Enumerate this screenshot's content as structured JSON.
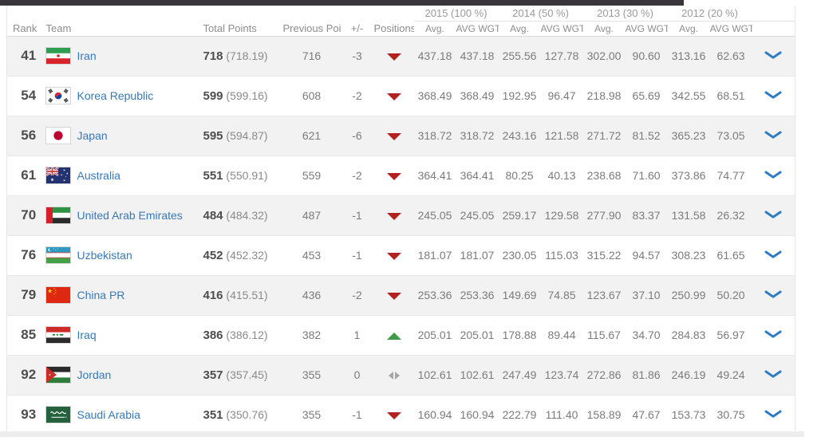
{
  "table": {
    "year_groups": [
      "2015 (100 %)",
      "2014 (50 %)",
      "2013 (30 %)",
      "2012 (20 %)"
    ],
    "subheaders": {
      "avg": "Avg.",
      "avg_wgt": "AVG WGT"
    },
    "columns": {
      "rank": "Rank",
      "team": "Team",
      "total_points": "Total Points",
      "previous_points": "Previous Points",
      "plus_minus": "+/-",
      "positions": "Positions"
    },
    "rows": [
      {
        "rank": "41",
        "team": "Iran",
        "flag": "iran",
        "total": "718",
        "total_detail": "(718.19)",
        "previous": "716",
        "change": "-3",
        "direction": "down",
        "values": [
          "437.18",
          "437.18",
          "255.56",
          "127.78",
          "302.00",
          "90.60",
          "313.16",
          "62.63"
        ]
      },
      {
        "rank": "54",
        "team": "Korea Republic",
        "flag": "korea-republic",
        "total": "599",
        "total_detail": "(599.16)",
        "previous": "608",
        "change": "-2",
        "direction": "down",
        "values": [
          "368.49",
          "368.49",
          "192.95",
          "96.47",
          "218.98",
          "65.69",
          "342.55",
          "68.51"
        ]
      },
      {
        "rank": "56",
        "team": "Japan",
        "flag": "japan",
        "total": "595",
        "total_detail": "(594.87)",
        "previous": "621",
        "change": "-6",
        "direction": "down",
        "values": [
          "318.72",
          "318.72",
          "243.16",
          "121.58",
          "271.72",
          "81.52",
          "365.23",
          "73.05"
        ]
      },
      {
        "rank": "61",
        "team": "Australia",
        "flag": "australia",
        "total": "551",
        "total_detail": "(550.91)",
        "previous": "559",
        "change": "-2",
        "direction": "down",
        "values": [
          "364.41",
          "364.41",
          "80.25",
          "40.13",
          "238.68",
          "71.60",
          "373.86",
          "74.77"
        ]
      },
      {
        "rank": "70",
        "team": "United Arab Emirates",
        "flag": "united-arab-emirates",
        "total": "484",
        "total_detail": "(484.32)",
        "previous": "487",
        "change": "-1",
        "direction": "down",
        "values": [
          "245.05",
          "245.05",
          "259.17",
          "129.58",
          "277.90",
          "83.37",
          "131.58",
          "26.32"
        ]
      },
      {
        "rank": "76",
        "team": "Uzbekistan",
        "flag": "uzbekistan",
        "total": "452",
        "total_detail": "(452.32)",
        "previous": "453",
        "change": "-1",
        "direction": "down",
        "values": [
          "181.07",
          "181.07",
          "230.05",
          "115.03",
          "315.22",
          "94.57",
          "308.23",
          "61.65"
        ]
      },
      {
        "rank": "79",
        "team": "China PR",
        "flag": "china-pr",
        "total": "416",
        "total_detail": "(415.51)",
        "previous": "436",
        "change": "-2",
        "direction": "down",
        "values": [
          "253.36",
          "253.36",
          "149.69",
          "74.85",
          "123.67",
          "37.10",
          "250.99",
          "50.20"
        ]
      },
      {
        "rank": "85",
        "team": "Iraq",
        "flag": "iraq",
        "total": "386",
        "total_detail": "(386.12)",
        "previous": "382",
        "change": "1",
        "direction": "up",
        "values": [
          "205.01",
          "205.01",
          "178.88",
          "89.44",
          "115.67",
          "34.70",
          "284.83",
          "56.97"
        ]
      },
      {
        "rank": "92",
        "team": "Jordan",
        "flag": "jordan",
        "total": "357",
        "total_detail": "(357.45)",
        "previous": "355",
        "change": "0",
        "direction": "none",
        "values": [
          "102.61",
          "102.61",
          "247.49",
          "123.74",
          "272.86",
          "81.86",
          "246.19",
          "49.24"
        ]
      },
      {
        "rank": "93",
        "team": "Saudi Arabia",
        "flag": "saudi-arabia",
        "total": "351",
        "total_detail": "(350.76)",
        "previous": "355",
        "change": "-1",
        "direction": "down",
        "values": [
          "160.94",
          "160.94",
          "222.79",
          "111.40",
          "158.89",
          "47.67",
          "153.73",
          "30.75"
        ]
      }
    ]
  },
  "colors": {
    "topbar": "#39353a",
    "link": "#3878b8",
    "down": "#b2201f",
    "up": "#3f9b43",
    "neutral": "#a6a6a6",
    "chevron": "#2e7cc4",
    "row_stripe": "#f2f2f2",
    "footer": "#ededed"
  }
}
